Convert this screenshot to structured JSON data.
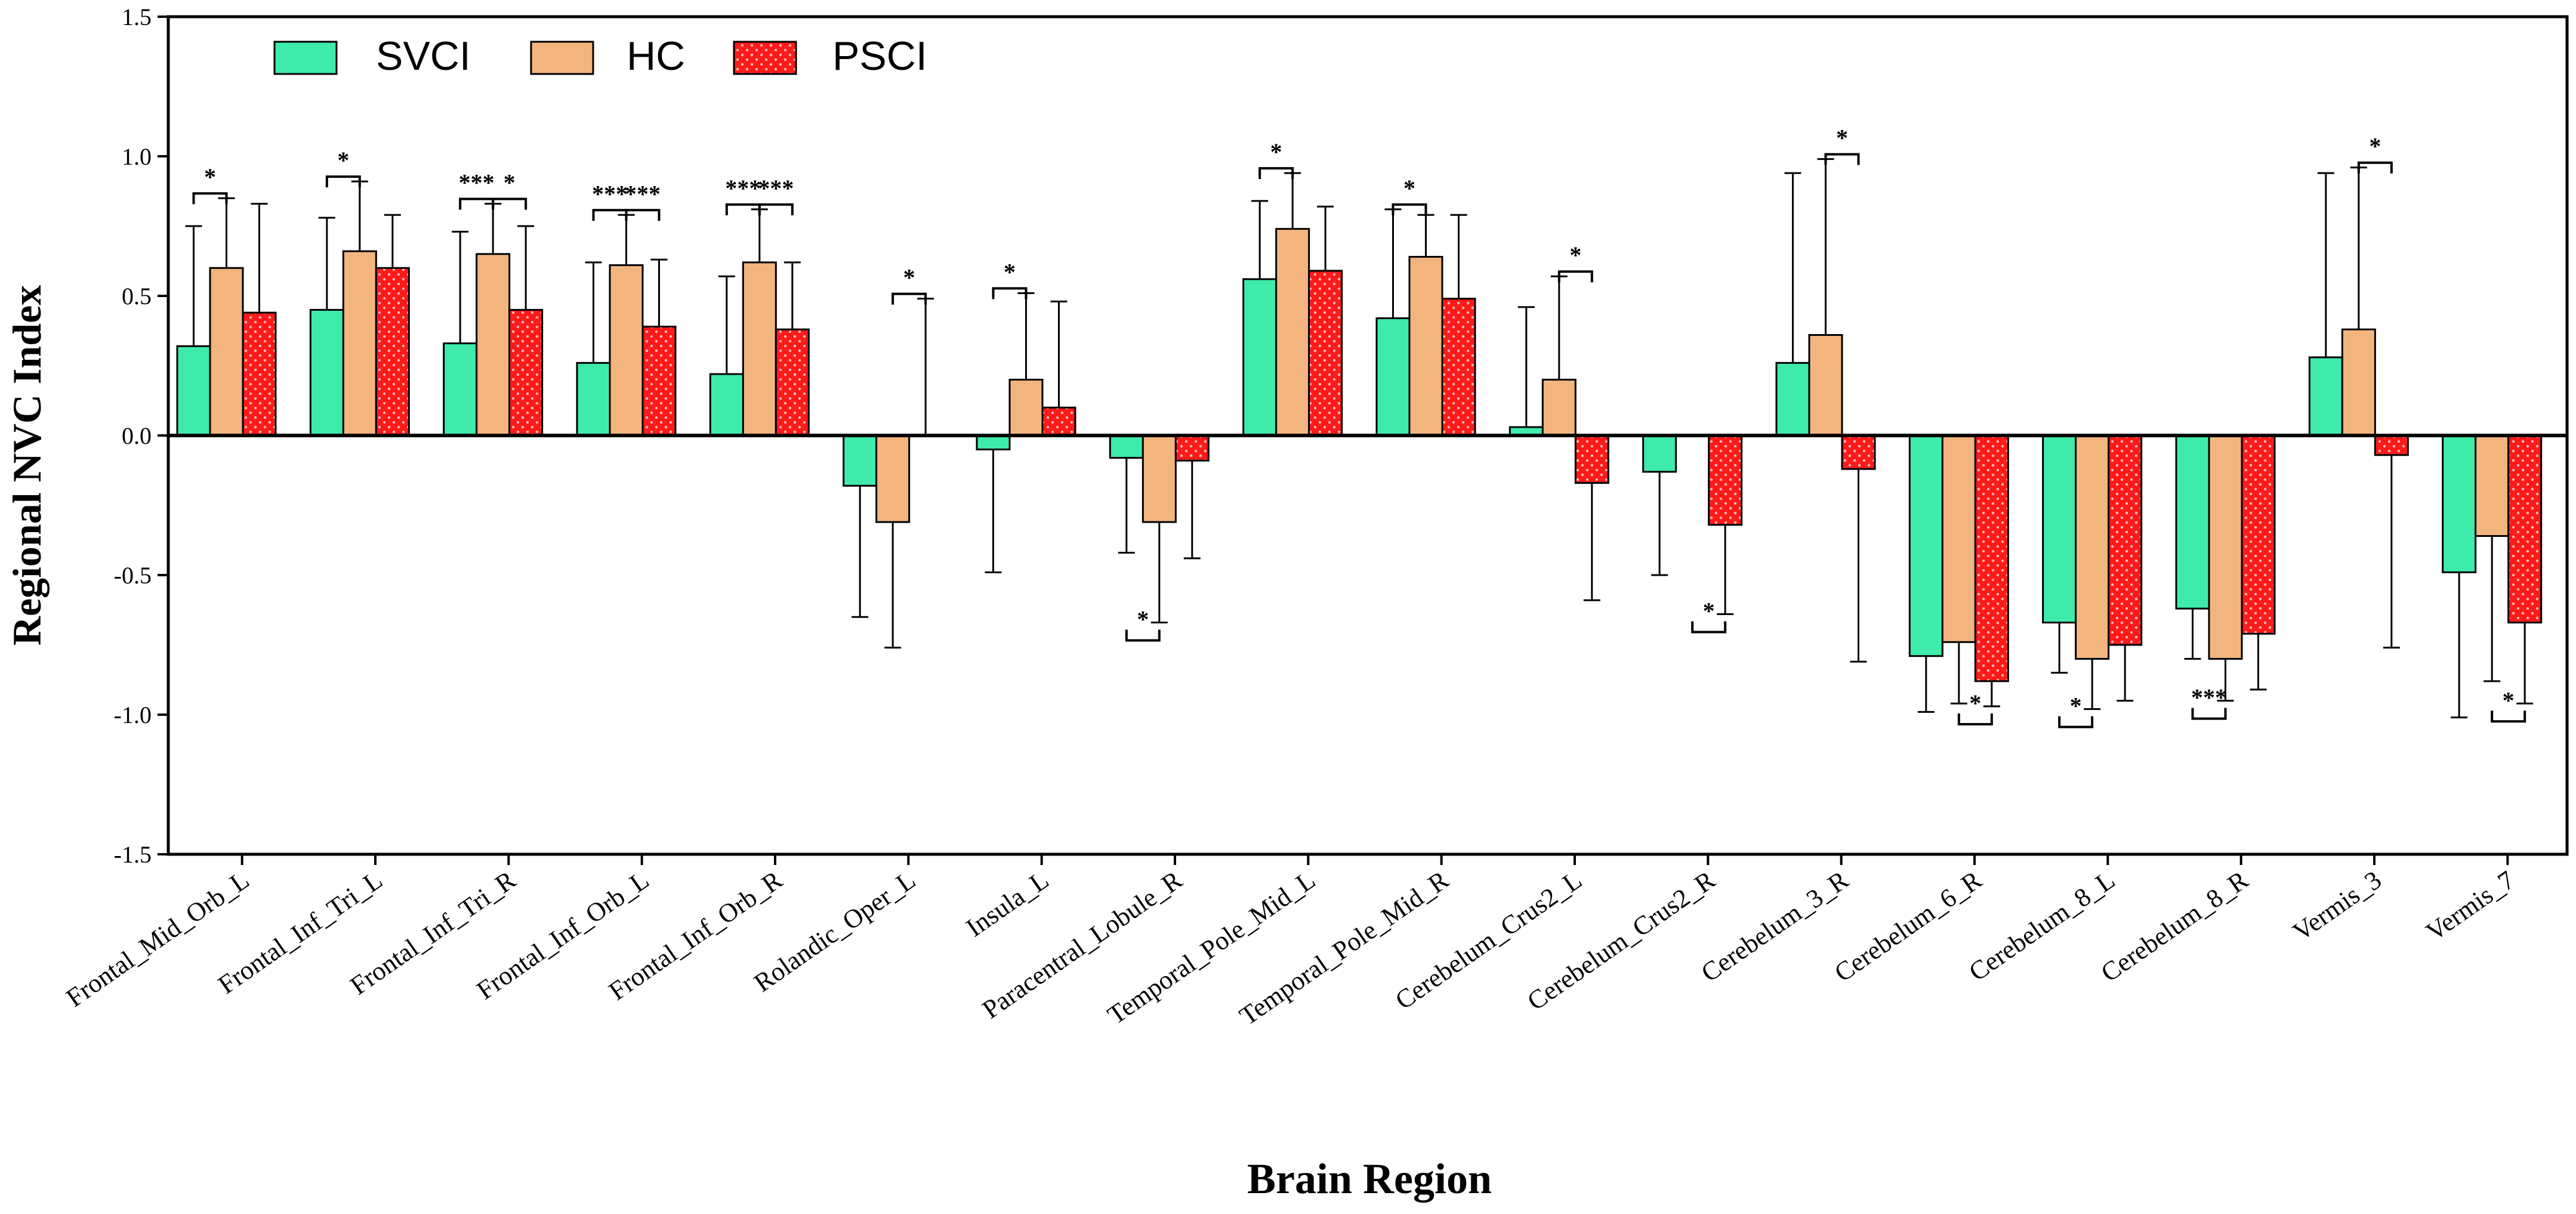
{
  "chart_data": {
    "type": "bar",
    "title": "",
    "xlabel": "Brain Region",
    "ylabel": "Regional NVC Index",
    "ylim": [
      -1.5,
      1.5
    ],
    "yticks": [
      -1.5,
      -1.0,
      -0.5,
      0.0,
      0.5,
      1.0,
      1.5
    ],
    "ytick_labels": [
      "-1.5",
      "-1.0",
      "-0.5",
      "0.0",
      "0.5",
      "1.0",
      "1.5"
    ],
    "legend_position": "top-left",
    "categories": [
      "Frontal_Mid_Orb_L",
      "Frontal_Inf_Tri_L",
      "Frontal_Inf_Tri_R",
      "Frontal_Inf_Orb_L",
      "Frontal_Inf_Orb_R",
      "Rolandic_Oper_L",
      "Insula_L",
      "Paracentral_Lobule_R",
      "Temporal_Pole_Mid_L",
      "Temporal_Pole_Mid_R",
      "Cerebelum_Crus2_L",
      "Cerebelum_Crus2_R",
      "Cerebelum_3_R",
      "Cerebelum_6_R",
      "Cerebelum_8_L",
      "Cerebelum_8_R",
      "Vermis_3",
      "Vermis_7"
    ],
    "series": [
      {
        "name": "SVCI",
        "color": "#3EEBAA",
        "pattern": "solid",
        "values": [
          0.32,
          0.45,
          0.33,
          0.26,
          0.22,
          -0.18,
          -0.05,
          -0.08,
          0.56,
          0.42,
          0.03,
          -0.13,
          0.26,
          -0.79,
          -0.67,
          -0.62,
          0.28,
          -0.49
        ],
        "errors": [
          0.43,
          0.33,
          0.4,
          0.36,
          0.35,
          0.47,
          0.44,
          0.34,
          0.28,
          0.39,
          0.43,
          0.37,
          0.68,
          0.2,
          0.18,
          0.18,
          0.66,
          0.52
        ]
      },
      {
        "name": "HC",
        "color": "#F3B57E",
        "pattern": "solid",
        "values": [
          0.6,
          0.66,
          0.65,
          0.61,
          0.62,
          -0.31,
          0.2,
          -0.31,
          0.74,
          0.64,
          0.2,
          null,
          0.36,
          -0.74,
          -0.8,
          -0.8,
          0.38,
          -0.36
        ],
        "errors": [
          0.25,
          0.25,
          0.18,
          0.18,
          0.19,
          0.45,
          0.31,
          0.36,
          0.2,
          0.15,
          0.37,
          null,
          0.63,
          0.22,
          0.18,
          0.15,
          0.58,
          0.52
        ]
      },
      {
        "name": "PSCI",
        "color": "#FF1A1A",
        "pattern": "dotted",
        "values": [
          0.44,
          0.6,
          0.45,
          0.39,
          0.38,
          0.0,
          0.1,
          -0.09,
          0.59,
          0.49,
          -0.17,
          -0.32,
          -0.12,
          -0.88,
          -0.75,
          -0.71,
          -0.07,
          -0.67
        ],
        "errors": [
          0.39,
          0.19,
          0.3,
          0.24,
          0.24,
          0.49,
          0.38,
          0.35,
          0.23,
          0.3,
          0.42,
          0.32,
          0.69,
          0.09,
          0.2,
          0.2,
          0.69,
          0.29
        ]
      }
    ],
    "annotations": [
      {
        "category": "Frontal_Mid_Orb_L",
        "from": "SVCI",
        "to": "HC",
        "label": "*",
        "side": "above"
      },
      {
        "category": "Frontal_Inf_Tri_L",
        "from": "SVCI",
        "to": "HC",
        "label": "*",
        "side": "above"
      },
      {
        "category": "Frontal_Inf_Tri_R",
        "from": "SVCI",
        "to": "HC",
        "label": "***",
        "side": "above"
      },
      {
        "category": "Frontal_Inf_Tri_R",
        "from": "HC",
        "to": "PSCI",
        "label": "*",
        "side": "above"
      },
      {
        "category": "Frontal_Inf_Orb_L",
        "from": "SVCI",
        "to": "HC",
        "label": "***",
        "side": "above"
      },
      {
        "category": "Frontal_Inf_Orb_L",
        "from": "HC",
        "to": "PSCI",
        "label": "***",
        "side": "above"
      },
      {
        "category": "Frontal_Inf_Orb_R",
        "from": "SVCI",
        "to": "HC",
        "label": "***",
        "side": "above"
      },
      {
        "category": "Frontal_Inf_Orb_R",
        "from": "HC",
        "to": "PSCI",
        "label": "***",
        "side": "above"
      },
      {
        "category": "Rolandic_Oper_L",
        "from": "HC",
        "to": "PSCI",
        "label": "*",
        "side": "above"
      },
      {
        "category": "Insula_L",
        "from": "SVCI",
        "to": "HC",
        "label": "*",
        "side": "above"
      },
      {
        "category": "Paracentral_Lobule_R",
        "from": "SVCI",
        "to": "HC",
        "label": "*",
        "side": "below"
      },
      {
        "category": "Temporal_Pole_Mid_L",
        "from": "SVCI",
        "to": "HC",
        "label": "*",
        "side": "above"
      },
      {
        "category": "Temporal_Pole_Mid_R",
        "from": "SVCI",
        "to": "HC",
        "label": "*",
        "side": "above"
      },
      {
        "category": "Cerebelum_Crus2_L",
        "from": "HC",
        "to": "PSCI",
        "label": "*",
        "side": "above"
      },
      {
        "category": "Cerebelum_Crus2_R",
        "from": "HC",
        "to": "PSCI",
        "label": "*",
        "side": "below"
      },
      {
        "category": "Cerebelum_3_R",
        "from": "HC",
        "to": "PSCI",
        "label": "*",
        "side": "above"
      },
      {
        "category": "Cerebelum_6_R",
        "from": "HC",
        "to": "PSCI",
        "label": "*",
        "side": "below"
      },
      {
        "category": "Cerebelum_8_L",
        "from": "SVCI",
        "to": "HC",
        "label": "*",
        "side": "below"
      },
      {
        "category": "Cerebelum_8_R",
        "from": "SVCI",
        "to": "HC",
        "label": "***",
        "side": "below"
      },
      {
        "category": "Vermis_3",
        "from": "HC",
        "to": "PSCI",
        "label": "*",
        "side": "above"
      },
      {
        "category": "Vermis_7",
        "from": "HC",
        "to": "PSCI",
        "label": "*",
        "side": "below"
      }
    ]
  }
}
